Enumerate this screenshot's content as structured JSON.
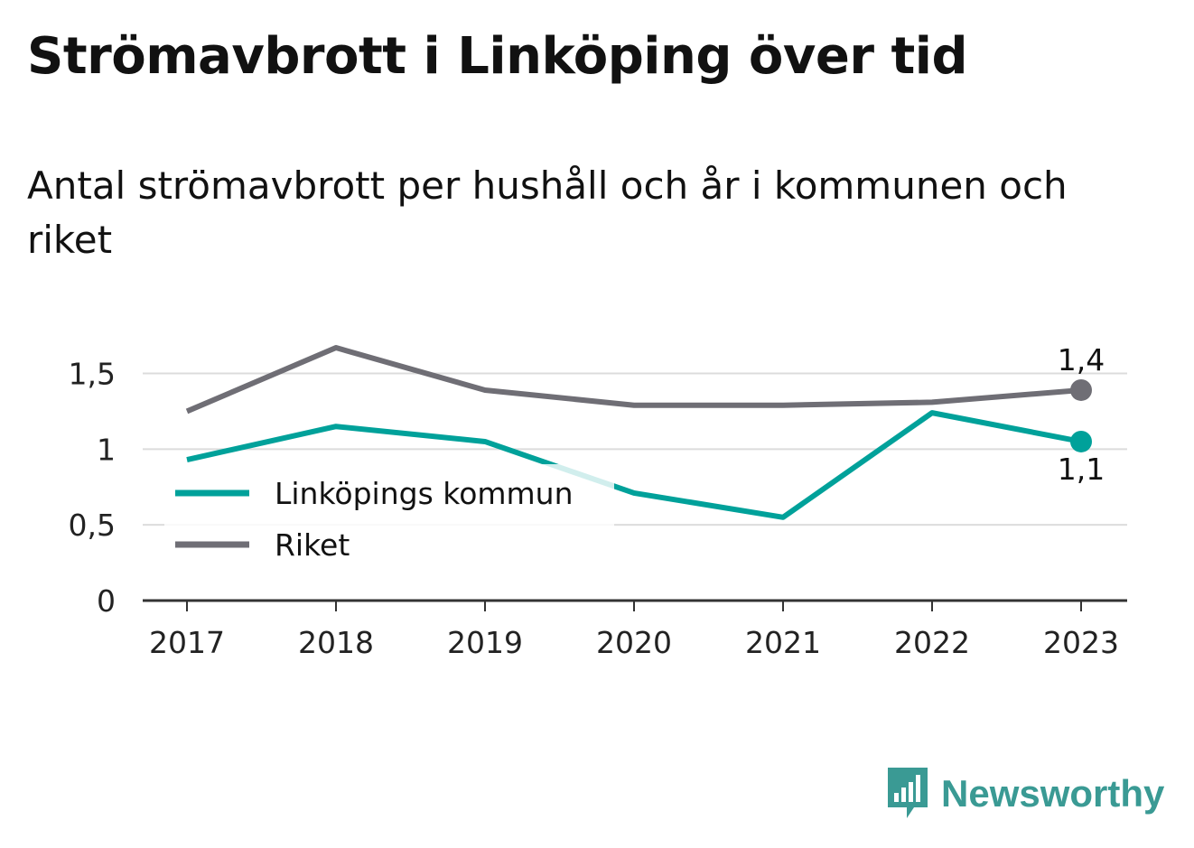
{
  "title": "Strömavbrott i Linköping över tid",
  "subtitle": "Antal strömavbrott per hushåll och år i kommunen och riket",
  "brand": {
    "name": "Newsworthy",
    "icon": "newsworthy-chart-icon",
    "color": "#3a9a94"
  },
  "chart_data": {
    "type": "line",
    "categories": [
      "2017",
      "2018",
      "2019",
      "2020",
      "2021",
      "2022",
      "2023"
    ],
    "ylim": [
      0,
      1.7
    ],
    "yticks": [
      0,
      0.5,
      1,
      1.5
    ],
    "ytick_labels": [
      "0",
      "0,5",
      "1",
      "1,5"
    ],
    "grid": true,
    "legend_position": "inside-left",
    "series": [
      {
        "name": "Linköpings kommun",
        "color": "#00a19a",
        "values": [
          0.93,
          1.15,
          1.05,
          0.71,
          0.55,
          1.24,
          1.05
        ],
        "end_label": "1,1"
      },
      {
        "name": "Riket",
        "color": "#6f6e75",
        "values": [
          1.25,
          1.67,
          1.39,
          1.29,
          1.29,
          1.31,
          1.39
        ],
        "end_label": "1,4"
      }
    ]
  }
}
